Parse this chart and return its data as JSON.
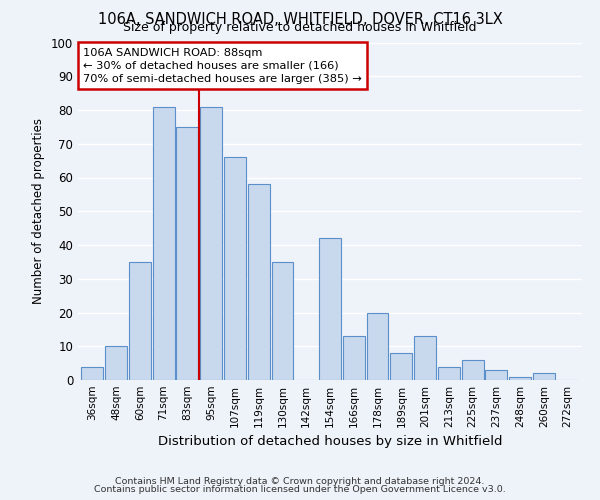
{
  "title1": "106A, SANDWICH ROAD, WHITFIELD, DOVER, CT16 3LX",
  "title2": "Size of property relative to detached houses in Whitfield",
  "xlabel": "Distribution of detached houses by size in Whitfield",
  "ylabel": "Number of detached properties",
  "bin_labels": [
    "36sqm",
    "48sqm",
    "60sqm",
    "71sqm",
    "83sqm",
    "95sqm",
    "107sqm",
    "119sqm",
    "130sqm",
    "142sqm",
    "154sqm",
    "166sqm",
    "178sqm",
    "189sqm",
    "201sqm",
    "213sqm",
    "225sqm",
    "237sqm",
    "248sqm",
    "260sqm",
    "272sqm"
  ],
  "bar_heights": [
    4,
    10,
    35,
    81,
    75,
    81,
    66,
    58,
    35,
    0,
    42,
    13,
    20,
    8,
    13,
    4,
    6,
    3,
    1,
    2,
    0
  ],
  "bar_color": "#c9d9ed",
  "bar_edge_color": "#5b8fc9",
  "ylim": [
    0,
    100
  ],
  "yticks": [
    0,
    10,
    20,
    30,
    40,
    50,
    60,
    70,
    80,
    90,
    100
  ],
  "vline_x": 4.5,
  "vline_color": "#cc0000",
  "annotation_title": "106A SANDWICH ROAD: 88sqm",
  "annotation_line1": "← 30% of detached houses are smaller (166)",
  "annotation_line2": "70% of semi-detached houses are larger (385) →",
  "annotation_box_facecolor": "#ffffff",
  "annotation_box_edgecolor": "#cc0000",
  "footer1": "Contains HM Land Registry data © Crown copyright and database right 2024.",
  "footer2": "Contains public sector information licensed under the Open Government Licence v3.0.",
  "background_color": "#eef2f9",
  "plot_bg_color": "#eef2f9",
  "grid_color": "#ffffff",
  "spine_color": "#cccccc"
}
